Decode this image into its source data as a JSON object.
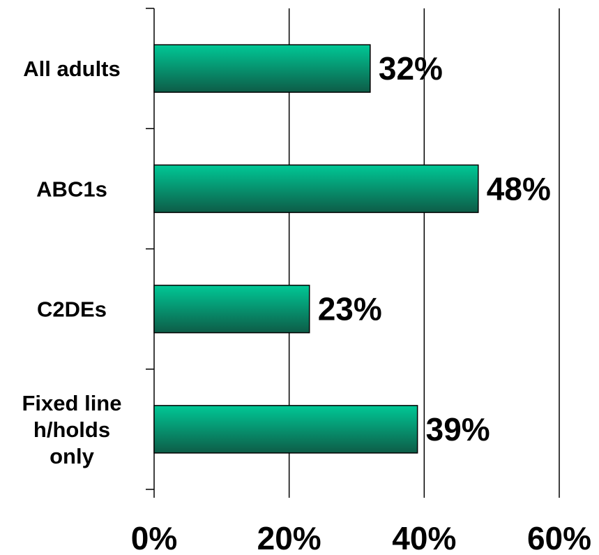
{
  "chart_data": {
    "type": "bar",
    "orientation": "horizontal",
    "categories": [
      "All adults",
      "ABC1s",
      "C2DEs",
      "Fixed line h/holds only"
    ],
    "category_lines": [
      [
        "All adults"
      ],
      [
        "ABC1s"
      ],
      [
        "C2DEs"
      ],
      [
        "Fixed line",
        "h/holds",
        "only"
      ]
    ],
    "values": [
      32,
      48,
      23,
      39
    ],
    "value_labels": [
      "32%",
      "48%",
      "23%",
      "39%"
    ],
    "xlim": [
      0,
      60
    ],
    "x_ticks": [
      0,
      20,
      40,
      60
    ],
    "x_tick_labels": [
      "0%",
      "20%",
      "40%",
      "60%"
    ],
    "grid": "vertical",
    "legend": "none",
    "title": "",
    "xlabel": "",
    "ylabel": "",
    "colors": {
      "bar_light": "#00c896",
      "bar_dark": "#0d5c47",
      "bar_outline": "#000000",
      "axis": "#000000"
    }
  }
}
